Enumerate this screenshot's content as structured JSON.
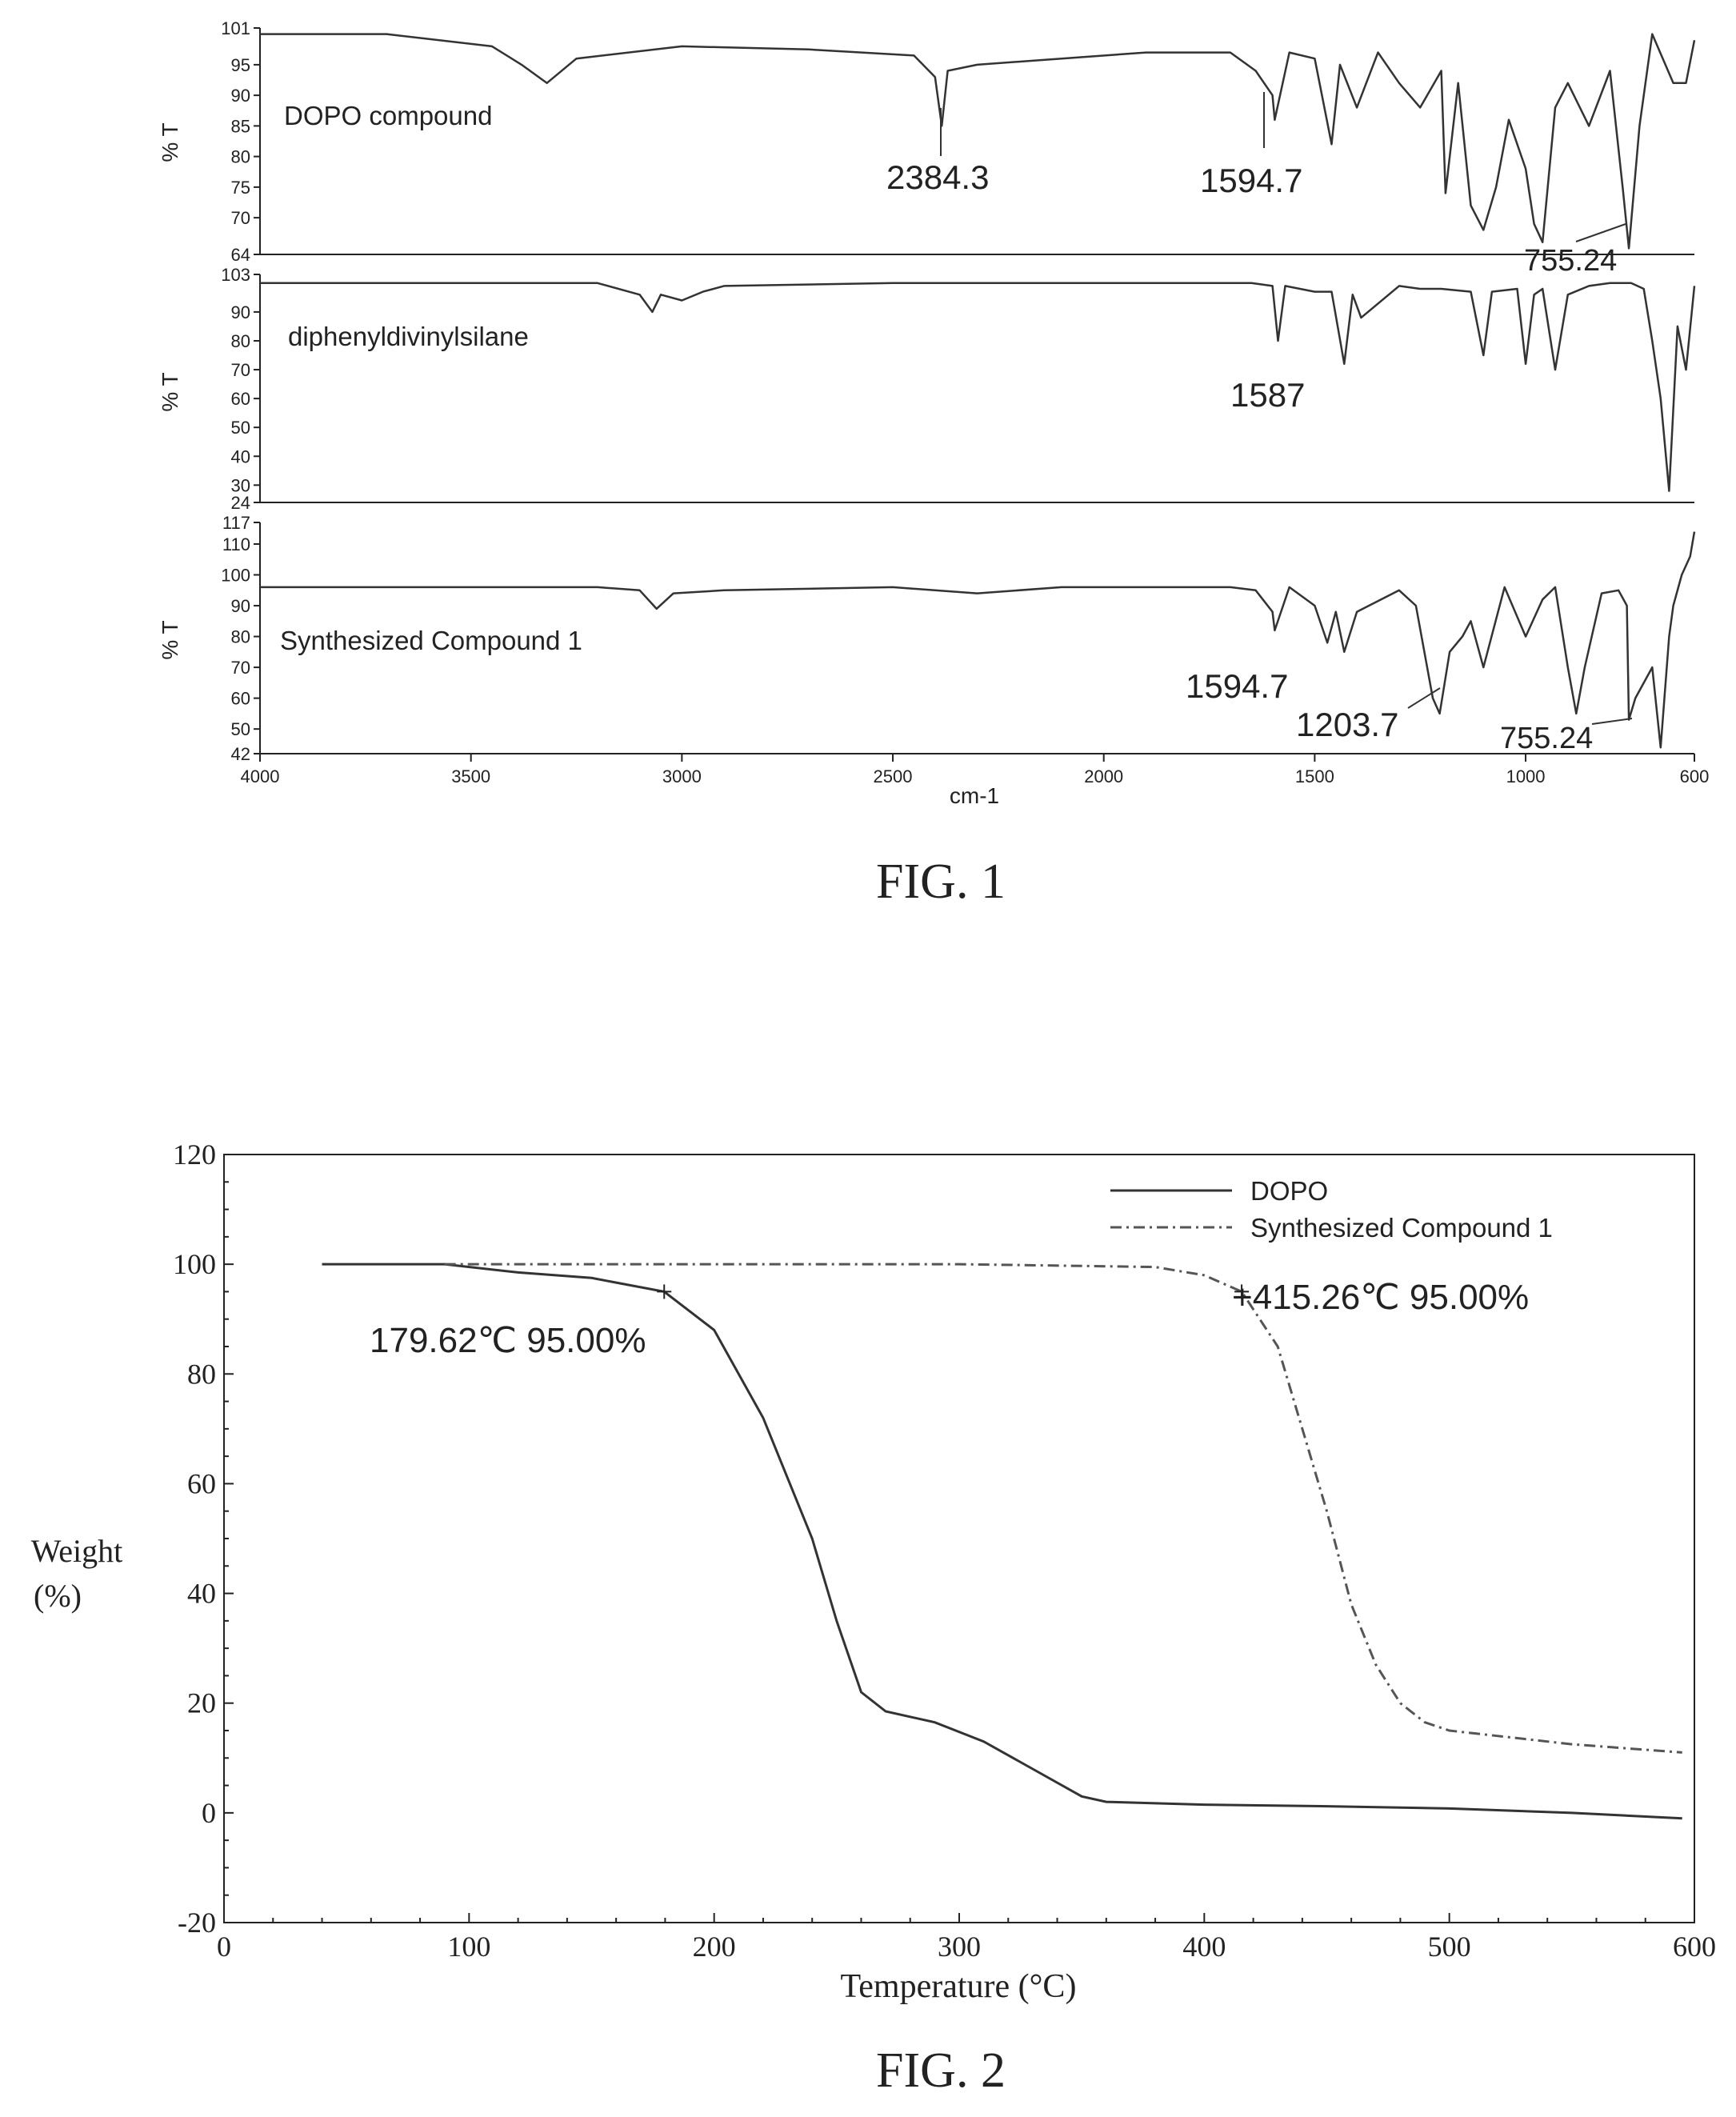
{
  "fig1": {
    "caption": "FIG. 1",
    "xlabel": "cm-1",
    "x_ticks": [
      4000,
      3500,
      3000,
      2500,
      2000,
      1500,
      1000,
      600
    ],
    "panels": [
      {
        "name": "DOPO compound",
        "ylabel": "% T",
        "y_ticks": [
          "101",
          "95",
          "90",
          "85",
          "80",
          "75",
          "70",
          "64"
        ],
        "ylim": [
          64,
          101
        ],
        "peak_labels": [
          "2384.3",
          "1594.7",
          "755.24"
        ]
      },
      {
        "name": "diphenyldivinylsilane",
        "ylabel": "% T",
        "y_ticks": [
          "103",
          "90",
          "80",
          "70",
          "60",
          "50",
          "40",
          "30",
          "24"
        ],
        "ylim": [
          24,
          103
        ],
        "peak_labels": [
          "1587"
        ]
      },
      {
        "name": "Synthesized Compound 1",
        "ylabel": "% T",
        "y_ticks": [
          "117",
          "110",
          "100",
          "90",
          "80",
          "70",
          "60",
          "50",
          "42"
        ],
        "ylim": [
          42,
          117
        ],
        "peak_labels": [
          "1594.7",
          "1203.7",
          "755.24"
        ]
      }
    ]
  },
  "chart_data": [
    {
      "type": "line",
      "title": "",
      "xlabel": "cm-1",
      "ylabel": "% T",
      "xlim": [
        4000,
        600
      ],
      "series": [
        {
          "name": "DOPO compound",
          "x": [
            4000,
            3700,
            3450,
            3380,
            3320,
            3250,
            3000,
            2700,
            2450,
            2400,
            2384,
            2370,
            2300,
            2100,
            1900,
            1700,
            1640,
            1600,
            1594.7,
            1560,
            1500,
            1460,
            1440,
            1400,
            1350,
            1300,
            1250,
            1200,
            1190,
            1160,
            1130,
            1100,
            1070,
            1040,
            1000,
            980,
            960,
            930,
            900,
            850,
            800,
            770,
            755.24,
            730,
            700,
            650,
            620,
            600
          ],
          "y": [
            100,
            100,
            98,
            95,
            92,
            96,
            98,
            97.5,
            96.5,
            93,
            85,
            94,
            95,
            96,
            97,
            97,
            94,
            90,
            86,
            97,
            96,
            82,
            95,
            88,
            97,
            92,
            88,
            94,
            74,
            92,
            72,
            68,
            75,
            86,
            78,
            69,
            66,
            88,
            92,
            85,
            94,
            75,
            65,
            85,
            100,
            92,
            92,
            99
          ]
        },
        {
          "name": "diphenyldivinylsilane",
          "x": [
            4000,
            3200,
            3100,
            3070,
            3050,
            3000,
            2950,
            2900,
            2500,
            2000,
            1650,
            1600,
            1587,
            1570,
            1500,
            1460,
            1430,
            1410,
            1390,
            1300,
            1250,
            1200,
            1130,
            1100,
            1080,
            1020,
            1000,
            980,
            960,
            930,
            900,
            850,
            800,
            750,
            720,
            700,
            680,
            660,
            640,
            620,
            600
          ],
          "y": [
            100,
            100,
            96,
            90,
            96,
            94,
            97,
            99,
            100,
            100,
            100,
            99,
            80,
            99,
            97,
            97,
            72,
            96,
            88,
            99,
            98,
            98,
            97,
            75,
            97,
            98,
            72,
            96,
            98,
            70,
            96,
            99,
            100,
            100,
            98,
            80,
            60,
            28,
            85,
            70,
            99
          ]
        },
        {
          "name": "Synthesized Compound 1",
          "x": [
            4000,
            3200,
            3100,
            3060,
            3020,
            2900,
            2500,
            2300,
            2100,
            1700,
            1640,
            1600,
            1594.7,
            1560,
            1500,
            1470,
            1450,
            1430,
            1400,
            1300,
            1260,
            1220,
            1203.7,
            1180,
            1150,
            1130,
            1100,
            1050,
            1000,
            960,
            930,
            900,
            880,
            860,
            820,
            780,
            760,
            755.24,
            740,
            700,
            680,
            660,
            650,
            630,
            610,
            600
          ],
          "y": [
            96,
            96,
            95,
            89,
            94,
            95,
            96,
            94,
            96,
            96,
            95,
            88,
            82,
            96,
            90,
            78,
            88,
            75,
            88,
            95,
            90,
            60,
            55,
            75,
            80,
            85,
            70,
            96,
            80,
            92,
            96,
            70,
            55,
            70,
            94,
            95,
            90,
            53,
            60,
            70,
            44,
            80,
            90,
            100,
            106,
            114
          ]
        }
      ]
    },
    {
      "type": "line",
      "title": "",
      "caption": "FIG. 2",
      "xlabel": "Temperature (°C)",
      "ylabel_line1": "Weight",
      "ylabel_line2": "(%)",
      "xlim": [
        0,
        600
      ],
      "ylim": [
        -20,
        120
      ],
      "x_ticks": [
        "0",
        "100",
        "200",
        "300",
        "400",
        "500",
        "600"
      ],
      "y_ticks": [
        "120",
        "100",
        "80",
        "60",
        "40",
        "20",
        "0",
        "-20"
      ],
      "grid": false,
      "legend_position": "top-right",
      "annotations": [
        {
          "text": "179.62℃ 95.00%",
          "x": 179.62,
          "y": 95.0
        },
        {
          "text": "+415.26℃ 95.00%",
          "x": 415.26,
          "y": 95.0
        }
      ],
      "series": [
        {
          "name": "DOPO",
          "x": [
            40,
            90,
            120,
            150,
            179.62,
            200,
            220,
            240,
            250,
            260,
            270,
            290,
            310,
            330,
            350,
            360,
            400,
            450,
            500,
            550,
            595
          ],
          "y": [
            100,
            100,
            98.5,
            97.5,
            95,
            88,
            72,
            50,
            35,
            22,
            18.5,
            16.5,
            13,
            8,
            3,
            2,
            1.5,
            1.2,
            0.8,
            0,
            -1
          ]
        },
        {
          "name": "Synthesized Compound 1",
          "x": [
            90,
            150,
            200,
            300,
            380,
            400,
            415.26,
            430,
            440,
            450,
            460,
            470,
            480,
            490,
            500,
            550,
            595
          ],
          "y": [
            100,
            100,
            100,
            100,
            99.5,
            98,
            95,
            85,
            70,
            55,
            38,
            27,
            20,
            16.5,
            15,
            12.5,
            11
          ]
        }
      ]
    }
  ]
}
